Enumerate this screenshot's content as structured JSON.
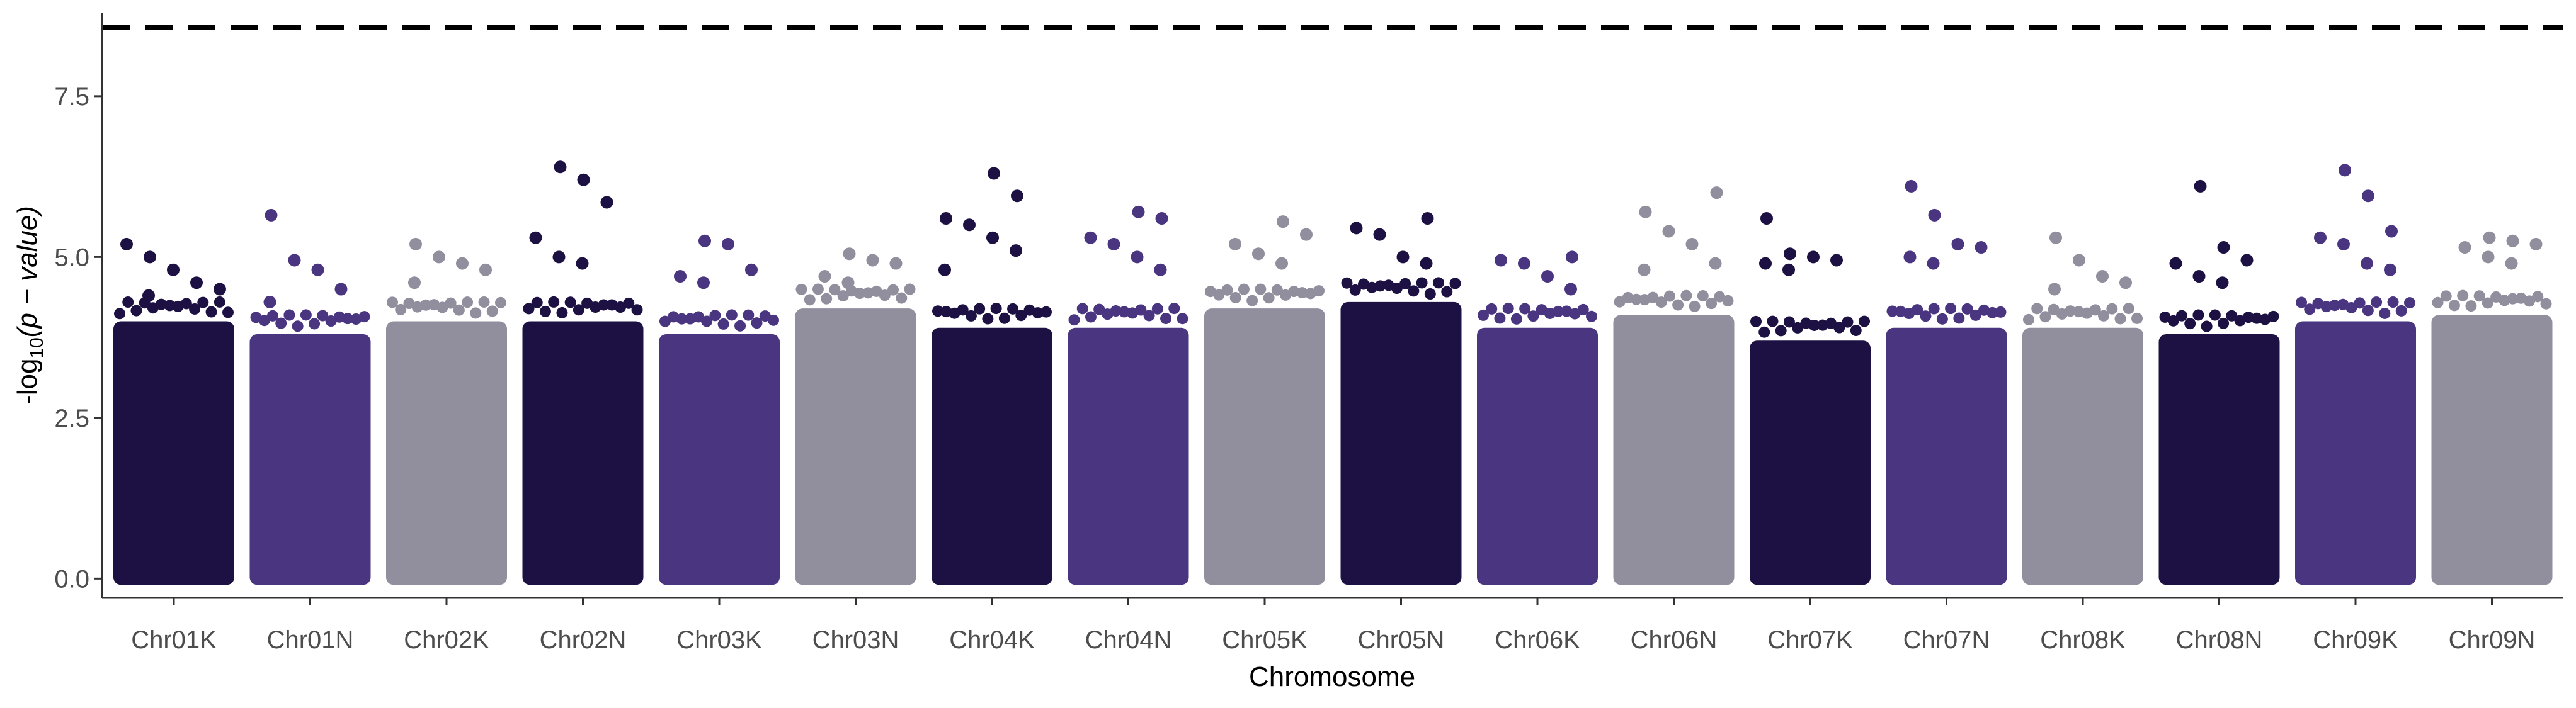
{
  "chart_data": {
    "type": "scatter",
    "subtype": "manhattan",
    "title": "",
    "xlabel": "Chromosome",
    "ylabel_prefix": "-log",
    "ylabel_sub": "10",
    "ylabel_suffix": "(p − value)",
    "ylim": [
      -0.3,
      8.8
    ],
    "yticks": [
      0.0,
      2.5,
      5.0,
      7.5
    ],
    "ytick_labels": [
      "0.0",
      "2.5",
      "5.0",
      "7.5"
    ],
    "threshold": 8.57,
    "threshold_style": "dashed",
    "grid": false,
    "legend": "none",
    "palette": [
      "#1c1142",
      "#4a3680",
      "#918e9e"
    ],
    "categories": [
      "Chr01K",
      "Chr01N",
      "Chr02K",
      "Chr02N",
      "Chr03K",
      "Chr03N",
      "Chr04K",
      "Chr04N",
      "Chr05K",
      "Chr05N",
      "Chr06K",
      "Chr06N",
      "Chr07K",
      "Chr07N",
      "Chr08K",
      "Chr08N",
      "Chr09K",
      "Chr09N"
    ],
    "series": [
      {
        "chromosome": "Chr01K",
        "dense_max": 4.0,
        "top_values": [
          5.2,
          5.0,
          4.8,
          4.6,
          4.5,
          4.4
        ]
      },
      {
        "chromosome": "Chr01N",
        "dense_max": 3.8,
        "top_values": [
          5.65,
          4.95,
          4.8,
          4.5,
          4.3
        ]
      },
      {
        "chromosome": "Chr02K",
        "dense_max": 4.0,
        "top_values": [
          5.2,
          5.0,
          4.9,
          4.8,
          4.6
        ]
      },
      {
        "chromosome": "Chr02N",
        "dense_max": 4.0,
        "top_values": [
          6.4,
          6.2,
          5.85,
          5.3,
          5.0,
          4.9
        ]
      },
      {
        "chromosome": "Chr03K",
        "dense_max": 3.8,
        "top_values": [
          5.25,
          5.2,
          4.8,
          4.7,
          4.6
        ]
      },
      {
        "chromosome": "Chr03N",
        "dense_max": 4.2,
        "top_values": [
          5.05,
          4.95,
          4.9,
          4.7,
          4.6
        ]
      },
      {
        "chromosome": "Chr04K",
        "dense_max": 3.9,
        "top_values": [
          6.3,
          5.95,
          5.6,
          5.5,
          5.3,
          5.1,
          4.8
        ]
      },
      {
        "chromosome": "Chr04N",
        "dense_max": 3.9,
        "top_values": [
          5.7,
          5.6,
          5.3,
          5.2,
          5.0,
          4.8
        ]
      },
      {
        "chromosome": "Chr05K",
        "dense_max": 4.2,
        "top_values": [
          5.55,
          5.35,
          5.2,
          5.05,
          4.9
        ]
      },
      {
        "chromosome": "Chr05N",
        "dense_max": 4.3,
        "top_values": [
          5.6,
          5.45,
          5.35,
          5.0,
          4.9
        ]
      },
      {
        "chromosome": "Chr06K",
        "dense_max": 3.9,
        "top_values": [
          5.0,
          4.95,
          4.9,
          4.7,
          4.5
        ]
      },
      {
        "chromosome": "Chr06N",
        "dense_max": 4.1,
        "top_values": [
          6.0,
          5.7,
          5.4,
          5.2,
          4.9,
          4.8
        ]
      },
      {
        "chromosome": "Chr07K",
        "dense_max": 3.7,
        "top_values": [
          5.6,
          5.05,
          5.0,
          4.95,
          4.9,
          4.8
        ]
      },
      {
        "chromosome": "Chr07N",
        "dense_max": 3.9,
        "top_values": [
          6.1,
          5.65,
          5.2,
          5.15,
          5.0,
          4.9
        ]
      },
      {
        "chromosome": "Chr08K",
        "dense_max": 3.9,
        "top_values": [
          5.3,
          4.95,
          4.7,
          4.6,
          4.5
        ]
      },
      {
        "chromosome": "Chr08N",
        "dense_max": 3.8,
        "top_values": [
          6.1,
          5.15,
          4.95,
          4.9,
          4.7,
          4.6
        ]
      },
      {
        "chromosome": "Chr09K",
        "dense_max": 4.0,
        "top_values": [
          6.35,
          5.95,
          5.4,
          5.3,
          5.2,
          4.9,
          4.8
        ]
      },
      {
        "chromosome": "Chr09N",
        "dense_max": 4.1,
        "top_values": [
          5.3,
          5.25,
          5.2,
          5.15,
          5.0,
          4.9
        ]
      }
    ]
  }
}
